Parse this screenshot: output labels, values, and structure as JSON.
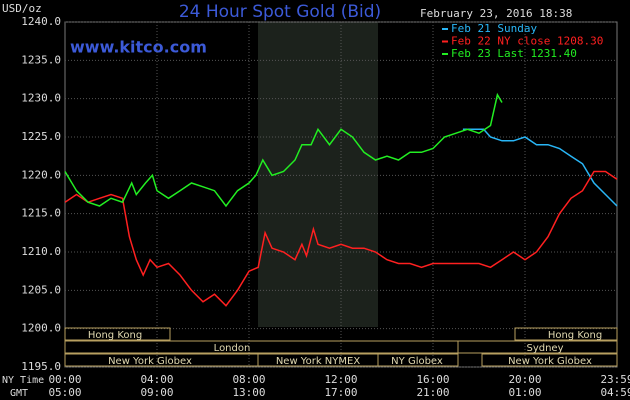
{
  "chart_data": {
    "type": "line",
    "title": "24 Hour Spot Gold (Bid)",
    "site": "www.kitco.com",
    "unit": "USD/oz",
    "date": "February 23, 2016 18:38",
    "x_row_labels": [
      "NY Time",
      "GMT"
    ],
    "xlim": [
      0,
      24
    ],
    "ylim": [
      1195,
      1240
    ],
    "xticks": [
      {
        "value": 0,
        "label": "00:00"
      },
      {
        "value": 4,
        "label": "04:00"
      },
      {
        "value": 8,
        "label": "08:00"
      },
      {
        "value": 12,
        "label": "12:00"
      },
      {
        "value": 16,
        "label": "16:00"
      },
      {
        "value": 20,
        "label": "20:00"
      },
      {
        "value": 24,
        "label": "23:59"
      }
    ],
    "gmt_ticks": [
      {
        "value": 0,
        "label": "05:00"
      },
      {
        "value": 4,
        "label": "09:00"
      },
      {
        "value": 8,
        "label": "13:00"
      },
      {
        "value": 12,
        "label": "17:00"
      },
      {
        "value": 16,
        "label": "21:00"
      },
      {
        "value": 20,
        "label": "01:00"
      },
      {
        "value": 24,
        "label": "04:59"
      }
    ],
    "yticks": [
      {
        "value": 1195,
        "label": "1195.0"
      },
      {
        "value": 1200,
        "label": "1200.0"
      },
      {
        "value": 1205,
        "label": "1205.0"
      },
      {
        "value": 1210,
        "label": "1210.0"
      },
      {
        "value": 1215,
        "label": "1215.0"
      },
      {
        "value": 1220,
        "label": "1220.0"
      },
      {
        "value": 1225,
        "label": "1225.0"
      },
      {
        "value": 1230,
        "label": "1230.0"
      },
      {
        "value": 1235,
        "label": "1235.0"
      },
      {
        "value": 1240,
        "label": "1240.0"
      }
    ],
    "grid": true,
    "sessions": [
      "Hong Kong",
      "Hong Kong",
      "London",
      "Sydney",
      "New York Globex",
      "New York NYMEX",
      "NY Globex",
      "New York Globex"
    ],
    "series": [
      {
        "name": "Feb 21 Sunday",
        "color": "#29b6f6",
        "x": [
          17.3,
          18.2,
          18.5,
          19,
          19.5,
          20,
          20.5,
          21,
          21.5,
          22,
          22.5,
          23,
          23.5,
          24
        ],
        "values": [
          1226,
          1226,
          1225,
          1224.5,
          1224.5,
          1225,
          1224,
          1224,
          1223.5,
          1222.5,
          1221.5,
          1219,
          1217.5,
          1216
        ]
      },
      {
        "name": "Feb 22 NY close 1208.30",
        "color": "#ff2020",
        "x": [
          0,
          0.5,
          1,
          1.5,
          2,
          2.5,
          2.8,
          3.1,
          3.4,
          3.7,
          4,
          4.5,
          5,
          5.5,
          6,
          6.5,
          7,
          7.5,
          8,
          8.4,
          8.7,
          9,
          9.5,
          10,
          10.3,
          10.5,
          10.8,
          11,
          11.5,
          12,
          12.5,
          13,
          13.5,
          14,
          14.5,
          15,
          15.5,
          16,
          16.5,
          17,
          17.5,
          18,
          18.5,
          19,
          19.5,
          20,
          20.5,
          21,
          21.5,
          22,
          22.5,
          23,
          23.5,
          24
        ],
        "values": [
          1216.5,
          1217.5,
          1216.5,
          1217,
          1217.5,
          1217,
          1212,
          1209,
          1207,
          1209,
          1208,
          1208.5,
          1207,
          1205,
          1203.5,
          1204.5,
          1203,
          1205,
          1207.5,
          1208,
          1212.5,
          1210.5,
          1210,
          1209,
          1211,
          1209.5,
          1213,
          1211,
          1210.5,
          1211,
          1210.5,
          1210.5,
          1210,
          1209,
          1208.5,
          1208.5,
          1208,
          1208.5,
          1208.5,
          1208.5,
          1208.5,
          1208.5,
          1208,
          1209,
          1210,
          1209,
          1210,
          1212,
          1215,
          1217,
          1218,
          1220.5,
          1220.5,
          1219.5
        ]
      },
      {
        "name": "Feb 23 Last 1231.40",
        "color": "#22ee22",
        "x": [
          0,
          0.5,
          1,
          1.5,
          2,
          2.5,
          2.9,
          3.1,
          3.5,
          3.8,
          4,
          4.5,
          5,
          5.5,
          6,
          6.5,
          7,
          7.5,
          8,
          8.3,
          8.6,
          9,
          9.5,
          10,
          10.3,
          10.7,
          11,
          11.5,
          12,
          12.5,
          13,
          13.5,
          14,
          14.5,
          15,
          15.5,
          16,
          16.5,
          17,
          17.5,
          18,
          18.5,
          18.8,
          19
        ],
        "values": [
          1220.5,
          1218,
          1216.5,
          1216,
          1217,
          1216.5,
          1219,
          1217.5,
          1219,
          1220,
          1218,
          1217,
          1218,
          1219,
          1218.5,
          1218,
          1216,
          1218,
          1219,
          1220,
          1222,
          1220,
          1220.5,
          1222,
          1224,
          1224,
          1226,
          1224,
          1226,
          1225,
          1223,
          1222,
          1222.5,
          1222,
          1223,
          1223,
          1223.5,
          1225,
          1225.5,
          1226,
          1225.5,
          1226.5,
          1230.5,
          1229.5
        ]
      }
    ]
  }
}
